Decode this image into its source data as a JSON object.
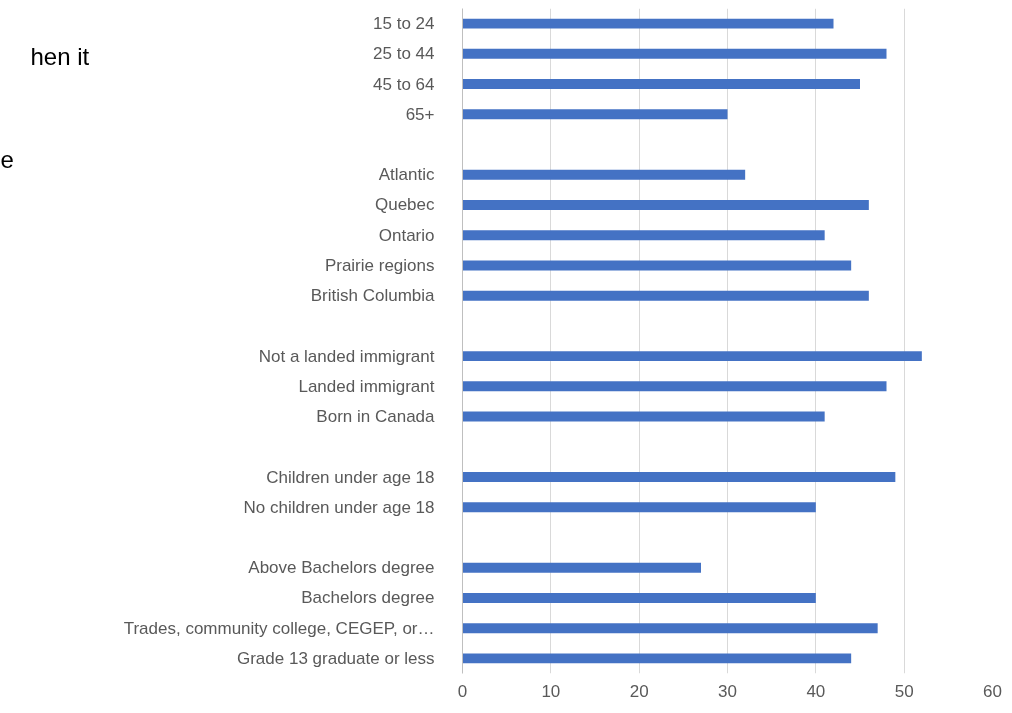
{
  "chart_data": {
    "type": "bar",
    "orientation": "horizontal",
    "categories": [
      "15 to 24",
      "25 to 44",
      "45 to 64",
      "65+",
      null,
      "Atlantic",
      "Quebec",
      "Ontario",
      "Prairie regions",
      "British Columbia",
      null,
      "Not a landed immigrant",
      "Landed immigrant",
      "Born in Canada",
      null,
      "Children under age 18",
      "No children under age 18",
      null,
      "Above Bachelors degree",
      "Bachelors degree",
      "Trades, community college, CEGEP, or…",
      "Grade 13 graduate or less"
    ],
    "values": [
      42,
      48,
      45,
      30,
      null,
      32,
      46,
      41,
      44,
      46,
      null,
      52,
      48,
      41,
      null,
      49,
      40,
      null,
      27,
      40,
      47,
      44
    ],
    "color": "#4472c4",
    "xlim": [
      0,
      60
    ],
    "xticks": [
      0,
      10,
      20,
      30,
      40,
      50,
      60
    ],
    "grid": "x",
    "annotations": [
      "hen it",
      "e"
    ]
  }
}
